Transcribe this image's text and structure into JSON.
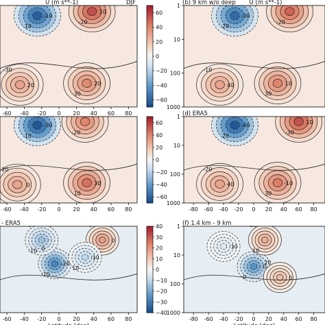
{
  "figure": {
    "colors": {
      "neg_deep": "#16488a",
      "neg_mid": "#5b97c8",
      "neg_light": "#cfe1ef",
      "zero": "#f6f6f6",
      "pos_light": "#f5d3c0",
      "pos_mid": "#dd7f66",
      "pos_deep": "#a6192e"
    }
  },
  "chart_data": [
    {
      "panel": "a",
      "type": "heatmap",
      "title_center": "U (m s**-1)",
      "title_right": "DJF",
      "xticks": [
        "-60",
        "-40",
        "-20",
        "0",
        "20",
        "40",
        "60",
        "80"
      ],
      "xlim": [
        -90,
        90
      ],
      "ylog": true,
      "ylim": [
        1000,
        1
      ],
      "colorbar": {
        "range": [
          -70,
          70
        ],
        "ticks": [
          "60",
          "40",
          "20",
          "0",
          "−20",
          "−40",
          "−60"
        ]
      },
      "contour_labels": [
        "-10",
        "-20",
        "-30",
        "20",
        "10",
        "10",
        "20",
        "30",
        "-20",
        "10"
      ],
      "centers": [
        {
          "lat": -25,
          "p": 2,
          "u": -62
        },
        {
          "lat": 38,
          "p": 1.5,
          "u": 55
        },
        {
          "lat": -45,
          "p": 220,
          "u": 30
        },
        {
          "lat": 32,
          "p": 200,
          "u": 38
        }
      ]
    },
    {
      "panel": "b",
      "type": "heatmap",
      "title_left": "(b) 9 km w/o deep",
      "title_center": "U (m s**-1)",
      "xticks": [],
      "xlim": [
        -90,
        90
      ],
      "ylog": true,
      "ylim": [
        1000,
        1
      ],
      "yticks": [
        "1",
        "10",
        "100",
        "1000"
      ],
      "contour_labels": [
        "-30",
        "-20",
        "-10",
        "10",
        "20",
        "30",
        "40",
        "30"
      ],
      "centers": [
        {
          "lat": -25,
          "p": 2,
          "u": -58
        },
        {
          "lat": 48,
          "p": 1.5,
          "u": 50
        },
        {
          "lat": -45,
          "p": 220,
          "u": 30
        },
        {
          "lat": 32,
          "p": 200,
          "u": 40
        }
      ]
    },
    {
      "panel": "c",
      "type": "heatmap",
      "xticks": [
        "-60",
        "-40",
        "-20",
        "0",
        "20",
        "40",
        "60",
        "80"
      ],
      "xlim": [
        -90,
        90
      ],
      "ylog": true,
      "ylim": [
        1000,
        1
      ],
      "colorbar": {
        "range": [
          -70,
          70
        ],
        "ticks": [
          "60",
          "40",
          "20",
          "0",
          "−20",
          "−40",
          "−60"
        ]
      },
      "contour_labels": [
        "-30",
        "-20",
        "20",
        "30",
        "10",
        "20",
        "0",
        "10",
        "30"
      ],
      "centers": [
        {
          "lat": -25,
          "p": 2,
          "u": -65
        },
        {
          "lat": 30,
          "p": 1.5,
          "u": 40
        },
        {
          "lat": -48,
          "p": 230,
          "u": 30
        },
        {
          "lat": 32,
          "p": 200,
          "u": 45
        }
      ]
    },
    {
      "panel": "d",
      "type": "heatmap",
      "title_left": "(d) ERA5",
      "xticks": [
        "-80",
        "-60",
        "-40",
        "-20",
        "0",
        "20",
        "40",
        "60",
        "80"
      ],
      "xlim": [
        -90,
        90
      ],
      "ylog": true,
      "ylim": [
        1000,
        1
      ],
      "yticks": [
        "1",
        "10",
        "100",
        "1000"
      ],
      "contour_labels": [
        "-40",
        "-30",
        "-20",
        "-10",
        "20",
        "30",
        "40",
        "30",
        "20",
        "10"
      ],
      "centers": [
        {
          "lat": -25,
          "p": 2,
          "u": -65
        },
        {
          "lat": 60,
          "p": 1.5,
          "u": 55
        },
        {
          "lat": -45,
          "p": 220,
          "u": 30
        },
        {
          "lat": 32,
          "p": 200,
          "u": 42
        }
      ]
    },
    {
      "panel": "e",
      "type": "heatmap",
      "title_left": "- ERA5",
      "xlabel": "Latitude (deg)",
      "xticks": [
        "-60",
        "-40",
        "-20",
        "0",
        "20",
        "40",
        "60",
        "80"
      ],
      "xlim": [
        -90,
        90
      ],
      "ylog": true,
      "ylim": [
        1000,
        1
      ],
      "colorbar": {
        "range": [
          -40,
          40
        ],
        "ticks": [
          "40",
          "30",
          "20",
          "10",
          "0",
          "−10",
          "−20",
          "−30",
          "−40"
        ]
      },
      "contour_labels": [
        "-20",
        "-10",
        "0",
        "10",
        "-10",
        "0",
        "0",
        "10",
        "0"
      ],
      "centers": [
        {
          "lat": -5,
          "p": 20,
          "u": -28
        },
        {
          "lat": -20,
          "p": 3,
          "u": -15
        },
        {
          "lat": 50,
          "p": 3,
          "u": 18
        },
        {
          "lat": 30,
          "p": 12,
          "u": -10
        }
      ]
    },
    {
      "panel": "f",
      "type": "heatmap",
      "title_left": "(f) 1.4 km - 9 km",
      "xlabel": "Latitude (deg)",
      "xticks": [
        "-80",
        "-60",
        "-40",
        "-20",
        "0",
        "20",
        "40",
        "60",
        "80"
      ],
      "xlim": [
        -90,
        90
      ],
      "ylog": true,
      "ylim": [
        1000,
        1
      ],
      "yticks": [
        "1",
        "10",
        "100",
        "1000"
      ],
      "contour_labels": [
        "0",
        "10",
        "20",
        "10",
        "0",
        "10",
        "0"
      ],
      "centers": [
        {
          "lat": 0,
          "p": 25,
          "u": -25
        },
        {
          "lat": 15,
          "p": 3,
          "u": 15
        },
        {
          "lat": 35,
          "p": 60,
          "u": 12
        },
        {
          "lat": -40,
          "p": 5,
          "u": -5
        }
      ]
    }
  ]
}
